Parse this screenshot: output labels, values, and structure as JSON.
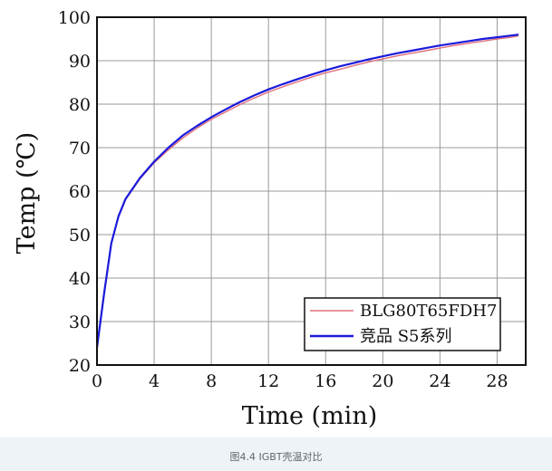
{
  "chart_data": {
    "type": "line",
    "xlabel": "Time (min)",
    "ylabel": "Temp (℃)",
    "xlim": [
      0,
      30
    ],
    "ylim": [
      20,
      100
    ],
    "xticks": [
      0,
      4,
      8,
      12,
      16,
      20,
      24,
      28
    ],
    "yticks": [
      20,
      30,
      40,
      50,
      60,
      70,
      80,
      90,
      100
    ],
    "grid": true,
    "legend_position": "bottom-right",
    "series": [
      {
        "name": "BLG80T65FDH7",
        "color": "#e0707a",
        "x": [
          0,
          0.5,
          1,
          1.5,
          2,
          3,
          4,
          5,
          6,
          7,
          8,
          9,
          10,
          11,
          12,
          13,
          14,
          15,
          16,
          17,
          18,
          19,
          20,
          21,
          22,
          23,
          24,
          25,
          26,
          27,
          28,
          29,
          29.5
        ],
        "y": [
          24.5,
          37,
          48,
          54,
          58,
          62.8,
          66.5,
          69.5,
          72.2,
          74.5,
          76.5,
          78.2,
          79.9,
          81.4,
          82.8,
          84.0,
          85.1,
          86.2,
          87.2,
          88.0,
          88.9,
          89.7,
          90.4,
          91.1,
          91.7,
          92.3,
          92.9,
          93.5,
          94.0,
          94.5,
          95.0,
          95.4,
          95.7
        ]
      },
      {
        "name": "竞品 S5系列",
        "color": "#1a1adc",
        "x": [
          0,
          0.5,
          1,
          1.5,
          2,
          3,
          4,
          5,
          6,
          7,
          8,
          9,
          10,
          11,
          12,
          13,
          14,
          15,
          16,
          17,
          18,
          19,
          20,
          21,
          22,
          23,
          24,
          25,
          26,
          27,
          28,
          29,
          29.5
        ],
        "y": [
          24,
          36.5,
          48,
          54.2,
          58.2,
          63,
          66.8,
          70,
          72.8,
          75,
          77,
          78.8,
          80.5,
          82,
          83.4,
          84.6,
          85.7,
          86.8,
          87.8,
          88.7,
          89.5,
          90.3,
          91,
          91.7,
          92.3,
          92.9,
          93.5,
          94.0,
          94.5,
          95.0,
          95.4,
          95.8,
          96.0
        ]
      }
    ]
  },
  "caption": "图4.4 IGBT壳温对比"
}
